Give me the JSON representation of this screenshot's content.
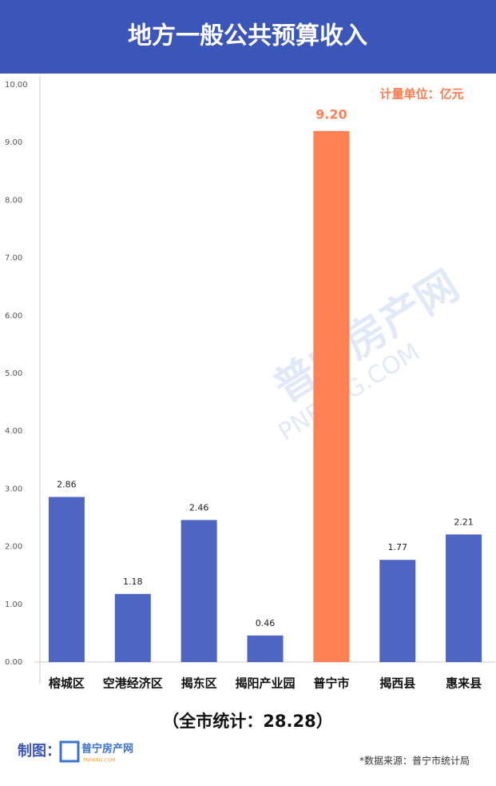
{
  "chart_data": {
    "type": "bar",
    "title": "地方一般公共预算收入",
    "unit": "计量单位：亿元",
    "categories": [
      "榕城区",
      "空港经济区",
      "揭东区",
      "揭阳产业园",
      "普宁市",
      "揭西县",
      "惠来县"
    ],
    "values": [
      2.86,
      1.18,
      2.46,
      0.46,
      9.2,
      1.77,
      2.21
    ],
    "value_labels": [
      "2.86",
      "1.18",
      "2.46",
      "0.46",
      "9.20",
      "1.77",
      "2.21"
    ],
    "colors": [
      "#4e65c2",
      "#4e65c2",
      "#4e65c2",
      "#4e65c2",
      "#ff8257",
      "#4e65c2",
      "#4e65c2"
    ],
    "ylim": [
      0,
      10
    ],
    "yticks": [
      {
        "value": 0,
        "label": "0.00"
      },
      {
        "value": 1,
        "label": "1.00"
      },
      {
        "value": 2,
        "label": "2.00"
      },
      {
        "value": 3,
        "label": "3.00"
      },
      {
        "value": 4,
        "label": "4.00"
      },
      {
        "value": 5,
        "label": "5.00"
      },
      {
        "value": 6,
        "label": "6.00"
      },
      {
        "value": 7,
        "label": "7.00"
      },
      {
        "value": 8,
        "label": "8.00"
      },
      {
        "value": 9,
        "label": "9.00"
      },
      {
        "value": 10,
        "label": "10.00"
      }
    ],
    "grid": false,
    "total_note": "（全市统计：28.28）",
    "credit": "制图：",
    "logo_name": "普宁房产网",
    "logo_url": "PNFANG.COM",
    "source": "*数据来源：普宁市统计局"
  }
}
